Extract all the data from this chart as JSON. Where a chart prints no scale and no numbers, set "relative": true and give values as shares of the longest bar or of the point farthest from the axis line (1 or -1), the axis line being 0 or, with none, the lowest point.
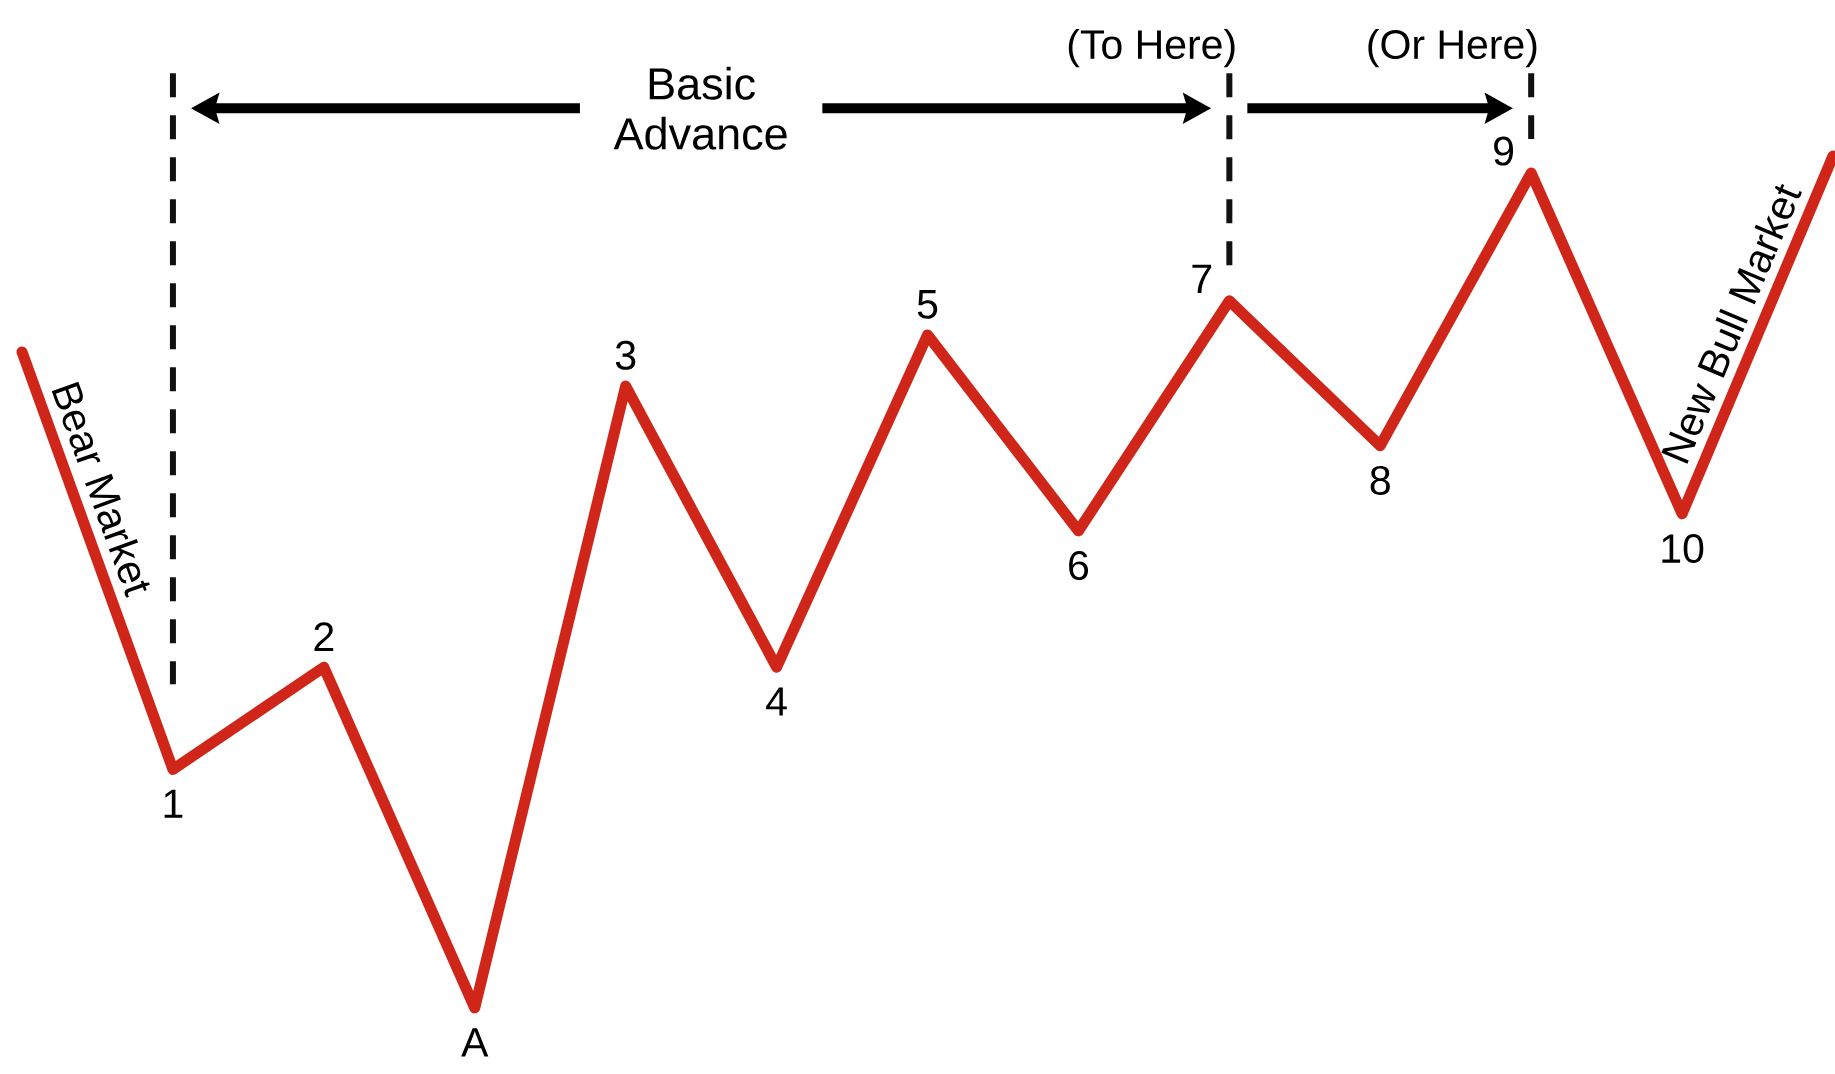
{
  "chart_data": {
    "type": "line",
    "relative": true,
    "categories": [
      null,
      "1",
      "2",
      "A",
      "3",
      "4",
      "5",
      "6",
      "7",
      "8",
      "9",
      "10",
      null
    ],
    "series": [
      {
        "color": "#d0261a",
        "values": [
          0.77,
          0.28,
          0.4,
          0,
          0.73,
          0.4,
          0.79,
          0.56,
          0.83,
          0.66,
          0.98,
          0.58,
          1
        ]
      }
    ],
    "ref_lines": [
      {
        "axis": "x",
        "value": "1",
        "color": "#111111",
        "line_style": "dashed"
      },
      {
        "axis": "x",
        "value": "7",
        "label": "(To Here)",
        "color": "#111111",
        "line_style": "dashed"
      },
      {
        "axis": "x",
        "value": "9",
        "label": "(Or Here)",
        "color": "#111111",
        "line_style": "dashed"
      }
    ],
    "annotations": [
      "Basic Advance",
      "Bear Market",
      "New Bull Market"
    ]
  }
}
